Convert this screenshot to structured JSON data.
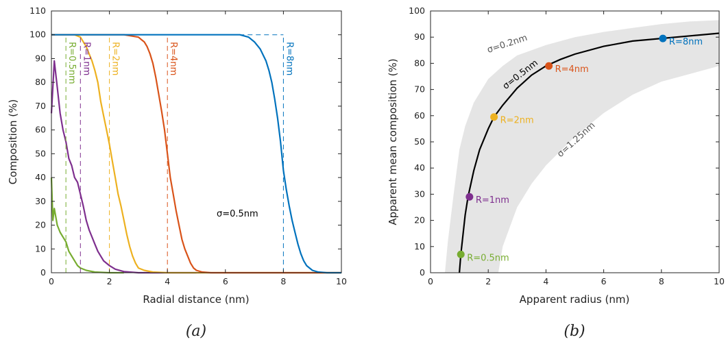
{
  "colors": {
    "r05": "#77ac30",
    "r1": "#7e2f8e",
    "r2": "#edb120",
    "r4": "#d95319",
    "r8": "#0072bd",
    "band": "#e5e5e5",
    "curve": "#000000"
  },
  "chart_data": [
    {
      "type": "line",
      "panel_label": "(a)",
      "xlabel": "Radial distance (nm)",
      "ylabel": "Composition (%)",
      "xlim": [
        0,
        10
      ],
      "ylim": [
        0,
        110
      ],
      "xticks": [
        "0",
        "2",
        "4",
        "6",
        "8",
        "10"
      ],
      "yticks": [
        "0",
        "10",
        "20",
        "30",
        "40",
        "50",
        "60",
        "70",
        "80",
        "90",
        "100",
        "110"
      ],
      "annotation": "σ=0.5nm",
      "series": [
        {
          "name": "R=0.5nm",
          "color_key": "r05",
          "radius_nm": 0.5,
          "x": [
            0,
            0.05,
            0.1,
            0.2,
            0.3,
            0.4,
            0.5,
            0.6,
            0.7,
            0.8,
            0.9,
            1.0,
            1.2,
            1.5,
            2.0,
            2.5
          ],
          "y": [
            40,
            22,
            27,
            20,
            17,
            15,
            13,
            9,
            7,
            5,
            3,
            2,
            1,
            0.3,
            0,
            0
          ]
        },
        {
          "name": "R=1nm",
          "color_key": "r1",
          "radius_nm": 1,
          "x": [
            0,
            0.1,
            0.2,
            0.3,
            0.4,
            0.5,
            0.6,
            0.7,
            0.8,
            0.9,
            1.0,
            1.1,
            1.2,
            1.3,
            1.4,
            1.5,
            1.6,
            1.7,
            1.8,
            1.9,
            2.0,
            2.2,
            2.5,
            3.0,
            4.0,
            5.0
          ],
          "y": [
            67,
            89,
            78,
            67,
            60,
            55,
            48,
            45,
            40,
            38,
            33,
            28,
            22,
            18,
            15,
            12,
            9,
            7,
            5,
            4,
            3,
            1.5,
            0.5,
            0,
            0,
            0
          ]
        },
        {
          "name": "R=2nm",
          "color_key": "r2",
          "radius_nm": 2,
          "x": [
            0,
            0.5,
            0.8,
            1.0,
            1.1,
            1.2,
            1.3,
            1.4,
            1.5,
            1.6,
            1.7,
            1.8,
            1.9,
            2.0,
            2.1,
            2.2,
            2.3,
            2.4,
            2.5,
            2.6,
            2.7,
            2.8,
            2.9,
            3.0,
            3.2,
            3.5,
            4.0,
            10.0
          ],
          "y": [
            100,
            100,
            100,
            99,
            97,
            95,
            92,
            89,
            85,
            80,
            72,
            66,
            60,
            54,
            47,
            40,
            33,
            28,
            22,
            16,
            11,
            7,
            4,
            2,
            1,
            0.3,
            0,
            0
          ]
        },
        {
          "name": "R=4nm",
          "color_key": "r4",
          "radius_nm": 4,
          "x": [
            0,
            2.5,
            3.0,
            3.1,
            3.2,
            3.3,
            3.4,
            3.5,
            3.6,
            3.7,
            3.8,
            3.9,
            4.0,
            4.1,
            4.2,
            4.3,
            4.4,
            4.5,
            4.6,
            4.7,
            4.8,
            4.9,
            5.0,
            5.2,
            5.5,
            6.0,
            10.0
          ],
          "y": [
            100,
            100,
            99,
            98,
            97,
            95,
            92,
            88,
            82,
            75,
            68,
            60,
            50,
            40,
            33,
            26,
            20,
            14,
            10,
            7,
            4,
            2,
            1,
            0.3,
            0,
            0,
            0
          ]
        },
        {
          "name": "R=8nm",
          "color_key": "r8",
          "radius_nm": 8,
          "x": [
            0,
            6.0,
            6.5,
            6.8,
            7.0,
            7.2,
            7.4,
            7.5,
            7.6,
            7.7,
            7.8,
            7.9,
            8.0,
            8.1,
            8.2,
            8.3,
            8.4,
            8.5,
            8.6,
            8.7,
            8.8,
            8.9,
            9.0,
            9.2,
            9.5,
            10.0
          ],
          "y": [
            100,
            100,
            100,
            99,
            97,
            94,
            89,
            85,
            80,
            73,
            65,
            55,
            43,
            35,
            28,
            22,
            17,
            12,
            8,
            5,
            3,
            2,
            1,
            0.3,
            0,
            0
          ]
        }
      ]
    },
    {
      "type": "line",
      "panel_label": "(b)",
      "xlabel": "Apparent radius (nm)",
      "ylabel": "Apparent mean composition (%)",
      "xlim": [
        0,
        10
      ],
      "ylim": [
        0,
        100
      ],
      "xticks": [
        "0",
        "2",
        "4",
        "6",
        "8",
        "10"
      ],
      "yticks": [
        "0",
        "10",
        "20",
        "30",
        "40",
        "50",
        "60",
        "70",
        "80",
        "90",
        "100"
      ],
      "curve": {
        "label": "σ=0.5nm",
        "x": [
          1.0,
          1.05,
          1.1,
          1.2,
          1.3,
          1.4,
          1.5,
          1.7,
          2.0,
          2.2,
          2.5,
          3.0,
          3.5,
          4.0,
          4.5,
          5.0,
          6.0,
          7.0,
          8.0,
          9.0,
          10.0
        ],
        "y": [
          0,
          7,
          12,
          22,
          29,
          34,
          39,
          47,
          55,
          59.5,
          64,
          70.5,
          75.5,
          79,
          81.5,
          83.5,
          86.5,
          88.5,
          89.5,
          90.5,
          91.5
        ]
      },
      "band": {
        "upper_label": "σ=0.2nm",
        "lower_label": "σ=1.25nm",
        "upper": {
          "x": [
            0.5,
            0.6,
            0.8,
            1.0,
            1.2,
            1.5,
            2.0,
            2.5,
            3.0,
            4.0,
            5.0,
            6.0,
            7.0,
            8.0,
            9.0,
            10.0
          ],
          "y": [
            0,
            12,
            30,
            47,
            56,
            65,
            74,
            79,
            83,
            87,
            90,
            92,
            93.5,
            95,
            96,
            96.5
          ]
        },
        "lower": {
          "x": [
            2.35,
            2.5,
            3.0,
            3.5,
            4.0,
            5.0,
            6.0,
            7.0,
            8.0,
            9.0,
            10.0
          ],
          "y": [
            0,
            10,
            25,
            34,
            41,
            52,
            61,
            68,
            73,
            76,
            79
          ]
        }
      },
      "points": [
        {
          "label": "R=0.5nm",
          "color_key": "r05",
          "x": 1.05,
          "y": 7
        },
        {
          "label": "R=1nm",
          "color_key": "r1",
          "x": 1.35,
          "y": 29
        },
        {
          "label": "R=2nm",
          "color_key": "r2",
          "x": 2.2,
          "y": 59.5
        },
        {
          "label": "R=4nm",
          "color_key": "r4",
          "x": 4.1,
          "y": 79
        },
        {
          "label": "R=8nm",
          "color_key": "r8",
          "x": 8.05,
          "y": 89.5
        }
      ]
    }
  ]
}
